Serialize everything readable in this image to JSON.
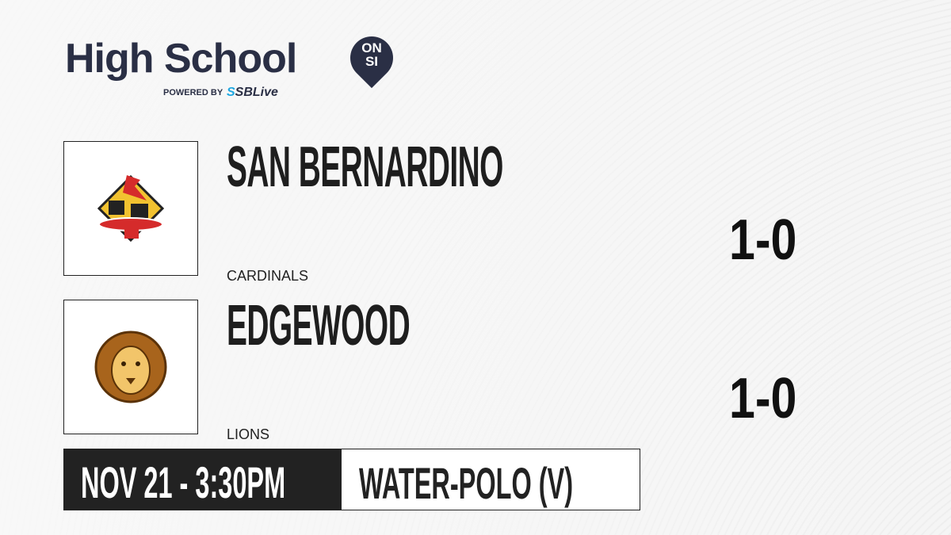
{
  "brand": {
    "title": "High School",
    "badge_line1": "ON",
    "badge_line2": "SI",
    "powered_by": "POWERED BY",
    "partner_s": "S",
    "partner": "SBLive"
  },
  "teams": [
    {
      "name": "SAN BERNARDINO",
      "mascot": "CARDINALS",
      "record": "1-0",
      "logo": "cardinal-logo",
      "color": "#d52b2b"
    },
    {
      "name": "EDGEWOOD",
      "mascot": "LIONS",
      "record": "1-0",
      "logo": "lion-logo",
      "color": "#d9a23a"
    }
  ],
  "game": {
    "datetime": "NOV 21 - 3:30PM",
    "sport": "WATER-POLO (V)"
  }
}
